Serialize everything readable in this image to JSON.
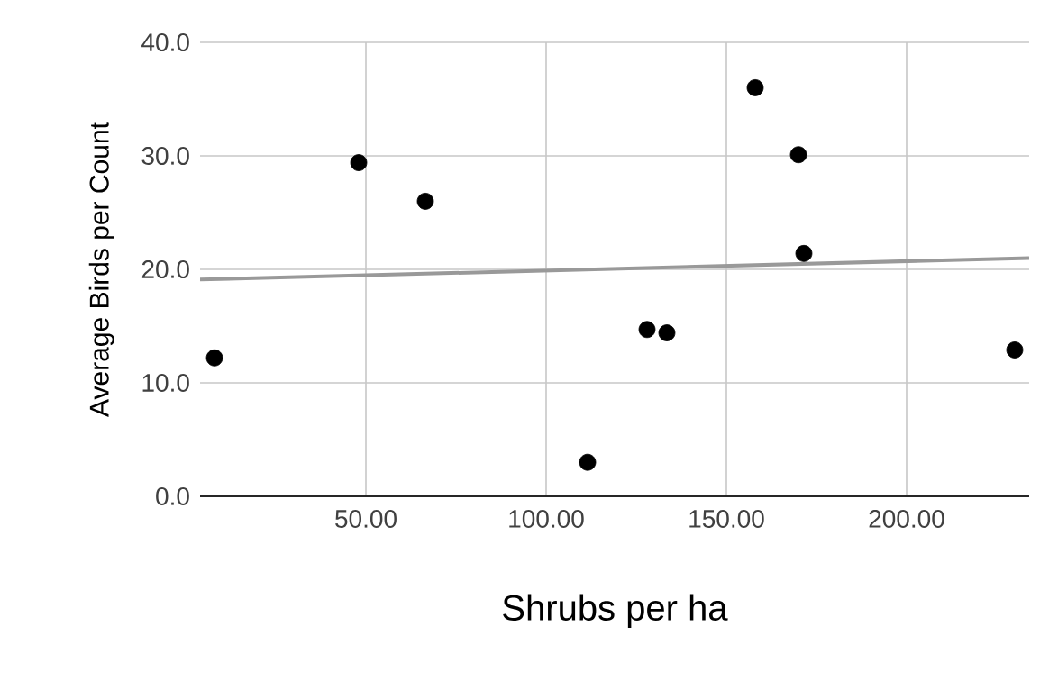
{
  "chart_data": {
    "type": "scatter",
    "xlabel": "Shrubs per ha",
    "ylabel": "Average Birds per Count",
    "xlim": [
      4,
      234
    ],
    "ylim": [
      0,
      40
    ],
    "xticks": [
      {
        "value": 50,
        "label": "50.00"
      },
      {
        "value": 100,
        "label": "100.00"
      },
      {
        "value": 150,
        "label": "150.00"
      },
      {
        "value": 200,
        "label": "200.00"
      }
    ],
    "yticks": [
      {
        "value": 0,
        "label": "0.0"
      },
      {
        "value": 10,
        "label": "10.0"
      },
      {
        "value": 20,
        "label": "20.0"
      },
      {
        "value": 30,
        "label": "30.0"
      },
      {
        "value": 40,
        "label": "40.0"
      }
    ],
    "grid": true,
    "marker": "circle",
    "series": [
      {
        "color": "#000000",
        "x": [
          8,
          48,
          66.5,
          111.5,
          128,
          133.5,
          158,
          170,
          171.5,
          230
        ],
        "values": [
          12.2,
          29.4,
          26,
          3,
          14.7,
          14.4,
          36,
          30.1,
          21.4,
          12.9
        ]
      },
      {
        "type": "line",
        "color": "#999999",
        "marker": "none",
        "x": [
          4,
          234
        ],
        "values": [
          19.1,
          21
        ]
      }
    ]
  }
}
